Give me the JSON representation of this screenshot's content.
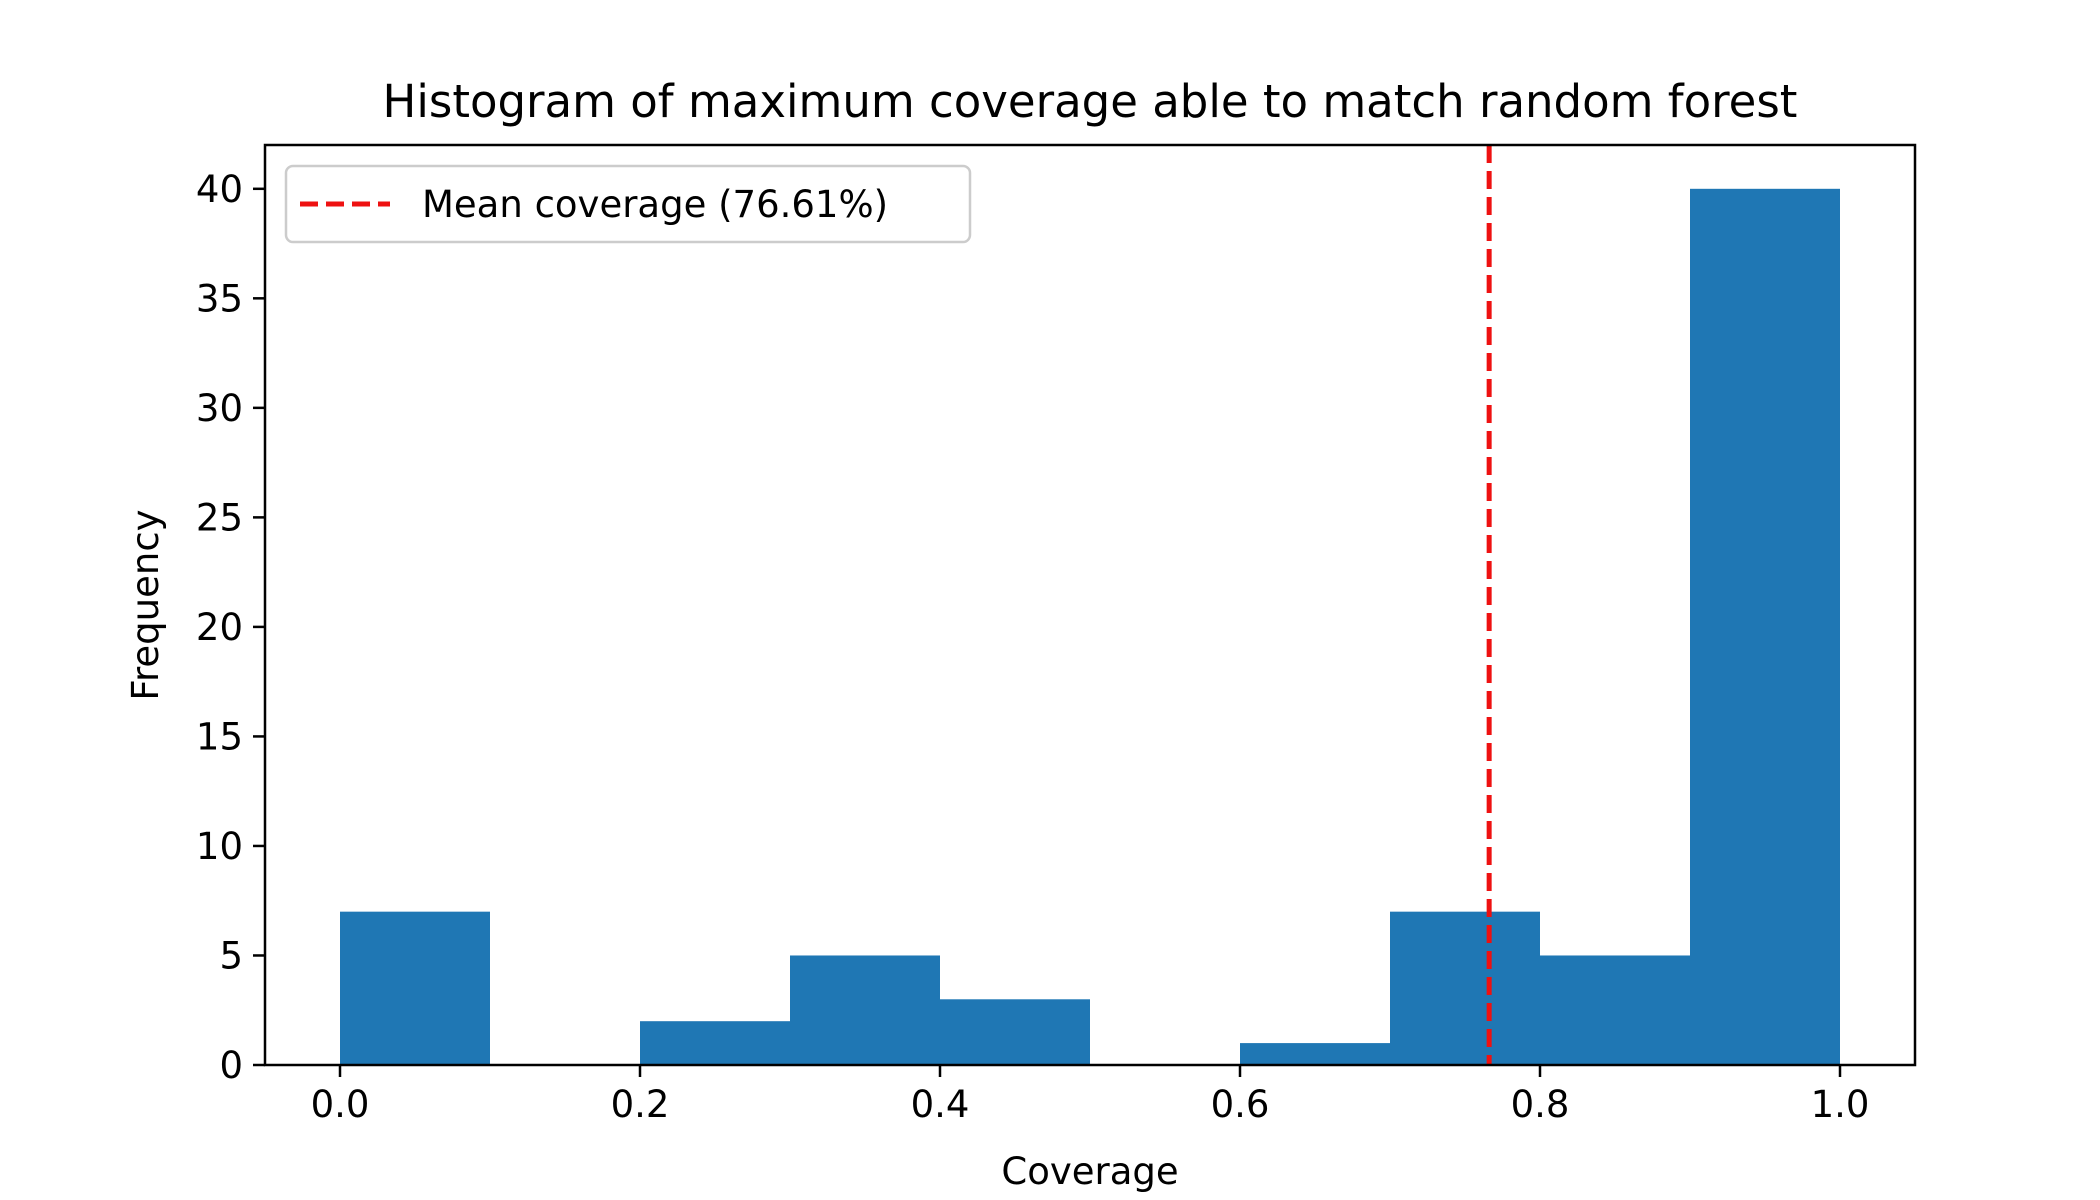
{
  "chart_data": {
    "type": "histogram",
    "title": "Histogram of maximum coverage able to match random forest",
    "xlabel": "Coverage",
    "ylabel": "Frequency",
    "bins": [
      {
        "start": 0.0,
        "end": 0.1,
        "count": 7
      },
      {
        "start": 0.1,
        "end": 0.2,
        "count": 0
      },
      {
        "start": 0.2,
        "end": 0.3,
        "count": 2
      },
      {
        "start": 0.3,
        "end": 0.4,
        "count": 5
      },
      {
        "start": 0.4,
        "end": 0.5,
        "count": 3
      },
      {
        "start": 0.5,
        "end": 0.6,
        "count": 0
      },
      {
        "start": 0.6,
        "end": 0.7,
        "count": 1
      },
      {
        "start": 0.7,
        "end": 0.8,
        "count": 7
      },
      {
        "start": 0.8,
        "end": 0.9,
        "count": 5
      },
      {
        "start": 0.9,
        "end": 1.0,
        "count": 40
      }
    ],
    "xlim": [
      -0.05,
      1.05
    ],
    "ylim": [
      0,
      42
    ],
    "xticks": [
      0.0,
      0.2,
      0.4,
      0.6,
      0.8,
      1.0
    ],
    "xtick_labels": [
      "0.0",
      "0.2",
      "0.4",
      "0.6",
      "0.8",
      "1.0"
    ],
    "yticks": [
      0,
      5,
      10,
      15,
      20,
      25,
      30,
      35,
      40
    ],
    "ytick_labels": [
      "0",
      "5",
      "10",
      "15",
      "20",
      "25",
      "30",
      "35",
      "40"
    ],
    "mean_line": {
      "value": 0.7661,
      "label": "Mean coverage (76.61%)",
      "color": "#ee1111",
      "style": "dashed"
    },
    "bar_color": "#1f77b4",
    "grid": false,
    "legend_position": "top-left"
  }
}
